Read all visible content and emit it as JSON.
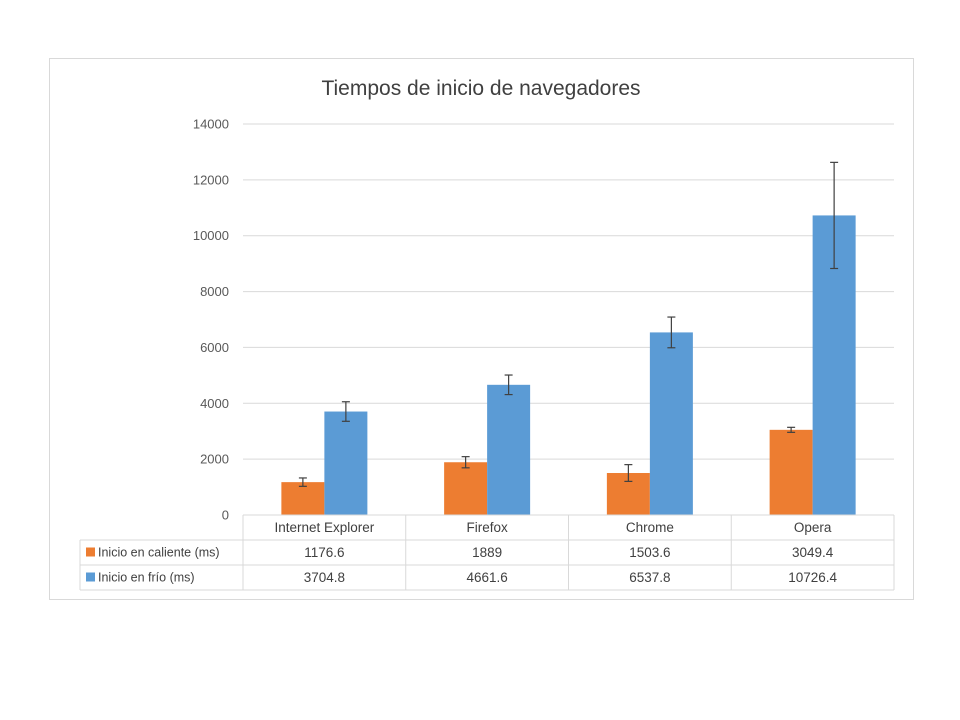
{
  "chart_data": {
    "type": "bar",
    "title": "Tiempos de inicio de navegadores",
    "categories": [
      "Internet Explorer",
      "Firefox",
      "Chrome",
      "Opera"
    ],
    "series": [
      {
        "name": "Inicio en caliente (ms)",
        "color": "#ed7d31",
        "values": [
          1176.6,
          1889,
          1503.6,
          3049.4
        ],
        "value_labels": [
          "1176.6",
          "1889",
          "1503.6",
          "3049.4"
        ],
        "error": [
          150,
          200,
          300,
          90
        ]
      },
      {
        "name": "Inicio en frío (ms)",
        "color": "#5b9bd5",
        "values": [
          3704.8,
          4661.6,
          6537.8,
          10726.4
        ],
        "value_labels": [
          "3704.8",
          "4661.6",
          "6537.8",
          "10726.4"
        ],
        "error": [
          350,
          350,
          550,
          1900
        ]
      }
    ],
    "ylim": [
      0,
      14000
    ],
    "yticks": [
      0,
      2000,
      4000,
      6000,
      8000,
      10000,
      12000,
      14000
    ],
    "ytick_labels": [
      "0",
      "2000",
      "4000",
      "6000",
      "8000",
      "10000",
      "12000",
      "14000"
    ],
    "grid": true,
    "legend": "data-table",
    "data_table": true
  }
}
